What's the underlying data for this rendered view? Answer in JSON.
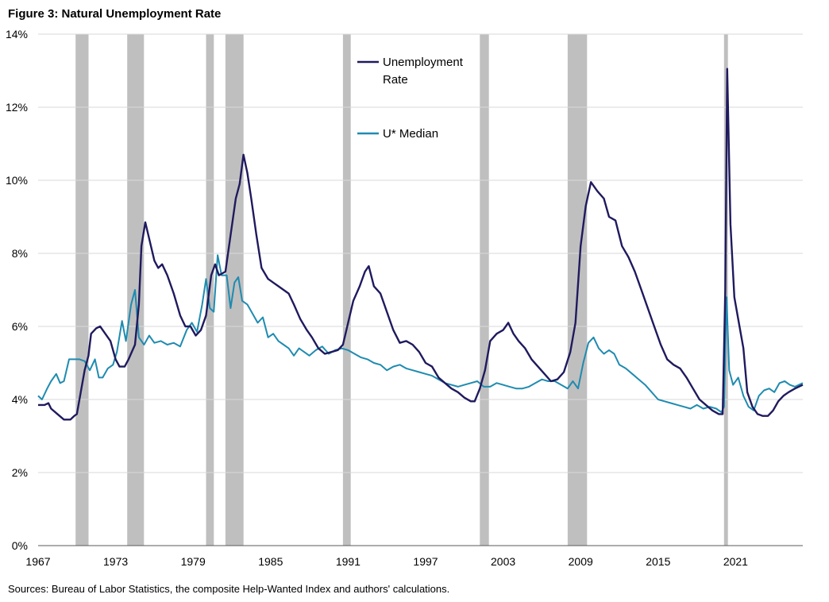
{
  "figure": {
    "title": "Figure 3: Natural Unemployment Rate",
    "source": "Sources: Bureau of Labor Statistics, the composite Help-Wanted Index and authors' calculations."
  },
  "chart_data": {
    "type": "line",
    "title": "Figure 3: Natural Unemployment Rate",
    "xlabel": "",
    "ylabel": "",
    "xlim": [
      1967,
      2026.2
    ],
    "ylim": [
      0,
      14
    ],
    "y_ticks": [
      0,
      2,
      4,
      6,
      8,
      10,
      12,
      14
    ],
    "y_tick_labels": [
      "0%",
      "2%",
      "4%",
      "6%",
      "8%",
      "10%",
      "12%",
      "14%"
    ],
    "x_ticks": [
      1967,
      1973,
      1979,
      1985,
      1991,
      1997,
      2003,
      2009,
      2015,
      2021
    ],
    "x_tick_labels": [
      "1967",
      "1973",
      "1979",
      "1985",
      "1991",
      "1997",
      "2003",
      "2009",
      "2015",
      "2021"
    ],
    "grid": "horizontal",
    "legend_position": "inside-top",
    "recessions": [
      [
        1969.9,
        1970.9
      ],
      [
        1973.9,
        1975.2
      ],
      [
        1980.0,
        1980.6
      ],
      [
        1981.5,
        1982.9
      ],
      [
        1990.6,
        1991.2
      ],
      [
        2001.2,
        2001.9
      ],
      [
        2008.0,
        2009.5
      ],
      [
        2020.1,
        2020.4
      ]
    ],
    "series": [
      {
        "name": "Unemployment Rate",
        "color": "#1f1a5e",
        "points": [
          [
            1967.0,
            3.85
          ],
          [
            1967.5,
            3.85
          ],
          [
            1967.8,
            3.9
          ],
          [
            1968.0,
            3.75
          ],
          [
            1968.5,
            3.6
          ],
          [
            1969.0,
            3.45
          ],
          [
            1969.5,
            3.45
          ],
          [
            1969.8,
            3.55
          ],
          [
            1970.0,
            3.6
          ],
          [
            1970.3,
            4.2
          ],
          [
            1970.6,
            4.8
          ],
          [
            1970.9,
            5.2
          ],
          [
            1971.1,
            5.8
          ],
          [
            1971.5,
            5.95
          ],
          [
            1971.8,
            6.0
          ],
          [
            1972.2,
            5.8
          ],
          [
            1972.6,
            5.6
          ],
          [
            1973.0,
            5.1
          ],
          [
            1973.3,
            4.9
          ],
          [
            1973.7,
            4.9
          ],
          [
            1974.0,
            5.1
          ],
          [
            1974.5,
            5.5
          ],
          [
            1974.8,
            6.6
          ],
          [
            1975.0,
            8.2
          ],
          [
            1975.3,
            8.85
          ],
          [
            1975.6,
            8.4
          ],
          [
            1976.0,
            7.8
          ],
          [
            1976.3,
            7.6
          ],
          [
            1976.6,
            7.7
          ],
          [
            1977.0,
            7.4
          ],
          [
            1977.5,
            6.9
          ],
          [
            1978.0,
            6.3
          ],
          [
            1978.4,
            6.0
          ],
          [
            1978.8,
            6.0
          ],
          [
            1979.2,
            5.75
          ],
          [
            1979.6,
            5.9
          ],
          [
            1980.0,
            6.3
          ],
          [
            1980.4,
            7.4
          ],
          [
            1980.7,
            7.7
          ],
          [
            1981.0,
            7.4
          ],
          [
            1981.5,
            7.5
          ],
          [
            1981.9,
            8.5
          ],
          [
            1982.3,
            9.5
          ],
          [
            1982.6,
            9.9
          ],
          [
            1982.9,
            10.7
          ],
          [
            1983.2,
            10.2
          ],
          [
            1983.5,
            9.5
          ],
          [
            1983.9,
            8.5
          ],
          [
            1984.3,
            7.6
          ],
          [
            1984.8,
            7.3
          ],
          [
            1985.2,
            7.2
          ],
          [
            1985.6,
            7.1
          ],
          [
            1986.0,
            7.0
          ],
          [
            1986.4,
            6.9
          ],
          [
            1986.8,
            6.6
          ],
          [
            1987.3,
            6.2
          ],
          [
            1987.8,
            5.9
          ],
          [
            1988.2,
            5.7
          ],
          [
            1988.7,
            5.4
          ],
          [
            1989.2,
            5.25
          ],
          [
            1989.7,
            5.3
          ],
          [
            1990.2,
            5.35
          ],
          [
            1990.6,
            5.5
          ],
          [
            1991.0,
            6.1
          ],
          [
            1991.4,
            6.7
          ],
          [
            1991.9,
            7.1
          ],
          [
            1992.3,
            7.5
          ],
          [
            1992.6,
            7.65
          ],
          [
            1993.0,
            7.1
          ],
          [
            1993.5,
            6.9
          ],
          [
            1994.0,
            6.4
          ],
          [
            1994.5,
            5.9
          ],
          [
            1995.0,
            5.55
          ],
          [
            1995.5,
            5.6
          ],
          [
            1996.0,
            5.5
          ],
          [
            1996.5,
            5.3
          ],
          [
            1997.0,
            5.0
          ],
          [
            1997.5,
            4.9
          ],
          [
            1998.0,
            4.6
          ],
          [
            1998.5,
            4.45
          ],
          [
            1999.0,
            4.3
          ],
          [
            1999.5,
            4.2
          ],
          [
            2000.0,
            4.05
          ],
          [
            2000.5,
            3.95
          ],
          [
            2000.8,
            3.95
          ],
          [
            2001.2,
            4.3
          ],
          [
            2001.6,
            4.8
          ],
          [
            2002.0,
            5.6
          ],
          [
            2002.5,
            5.8
          ],
          [
            2003.0,
            5.9
          ],
          [
            2003.4,
            6.1
          ],
          [
            2003.8,
            5.8
          ],
          [
            2004.2,
            5.6
          ],
          [
            2004.7,
            5.4
          ],
          [
            2005.2,
            5.1
          ],
          [
            2005.7,
            4.9
          ],
          [
            2006.2,
            4.7
          ],
          [
            2006.7,
            4.5
          ],
          [
            2007.2,
            4.55
          ],
          [
            2007.7,
            4.75
          ],
          [
            2008.2,
            5.3
          ],
          [
            2008.6,
            6.1
          ],
          [
            2009.0,
            8.2
          ],
          [
            2009.4,
            9.3
          ],
          [
            2009.8,
            9.95
          ],
          [
            2010.3,
            9.7
          ],
          [
            2010.8,
            9.5
          ],
          [
            2011.2,
            9.0
          ],
          [
            2011.7,
            8.9
          ],
          [
            2012.2,
            8.2
          ],
          [
            2012.7,
            7.9
          ],
          [
            2013.2,
            7.5
          ],
          [
            2013.7,
            7.0
          ],
          [
            2014.2,
            6.5
          ],
          [
            2014.7,
            6.0
          ],
          [
            2015.2,
            5.5
          ],
          [
            2015.7,
            5.1
          ],
          [
            2016.2,
            4.95
          ],
          [
            2016.7,
            4.85
          ],
          [
            2017.2,
            4.6
          ],
          [
            2017.7,
            4.3
          ],
          [
            2018.2,
            4.0
          ],
          [
            2018.7,
            3.85
          ],
          [
            2019.2,
            3.7
          ],
          [
            2019.7,
            3.6
          ],
          [
            2020.0,
            3.6
          ],
          [
            2020.2,
            7.0
          ],
          [
            2020.35,
            13.05
          ],
          [
            2020.6,
            8.8
          ],
          [
            2020.9,
            6.8
          ],
          [
            2021.3,
            6.0
          ],
          [
            2021.6,
            5.4
          ],
          [
            2021.9,
            4.2
          ],
          [
            2022.3,
            3.8
          ],
          [
            2022.7,
            3.6
          ],
          [
            2023.1,
            3.55
          ],
          [
            2023.5,
            3.55
          ],
          [
            2023.9,
            3.7
          ],
          [
            2024.3,
            3.95
          ],
          [
            2024.7,
            4.1
          ],
          [
            2025.1,
            4.2
          ],
          [
            2025.6,
            4.3
          ],
          [
            2026.2,
            4.4
          ]
        ]
      },
      {
        "name": "U* Median",
        "color": "#1f8bb0",
        "points": [
          [
            1967.0,
            4.1
          ],
          [
            1967.3,
            4.0
          ],
          [
            1967.7,
            4.3
          ],
          [
            1968.0,
            4.5
          ],
          [
            1968.4,
            4.7
          ],
          [
            1968.7,
            4.45
          ],
          [
            1969.0,
            4.5
          ],
          [
            1969.4,
            5.1
          ],
          [
            1969.8,
            5.1
          ],
          [
            1970.2,
            5.1
          ],
          [
            1970.6,
            5.05
          ],
          [
            1971.0,
            4.8
          ],
          [
            1971.4,
            5.1
          ],
          [
            1971.7,
            4.6
          ],
          [
            1972.0,
            4.6
          ],
          [
            1972.4,
            4.85
          ],
          [
            1972.8,
            4.95
          ],
          [
            1973.1,
            5.3
          ],
          [
            1973.5,
            6.15
          ],
          [
            1973.8,
            5.6
          ],
          [
            1974.2,
            6.6
          ],
          [
            1974.5,
            7.0
          ],
          [
            1974.8,
            5.7
          ],
          [
            1975.2,
            5.5
          ],
          [
            1975.6,
            5.75
          ],
          [
            1976.0,
            5.55
          ],
          [
            1976.5,
            5.6
          ],
          [
            1977.0,
            5.5
          ],
          [
            1977.5,
            5.55
          ],
          [
            1978.0,
            5.45
          ],
          [
            1978.5,
            5.9
          ],
          [
            1978.9,
            6.1
          ],
          [
            1979.3,
            5.85
          ],
          [
            1979.7,
            6.6
          ],
          [
            1980.0,
            7.3
          ],
          [
            1980.3,
            6.5
          ],
          [
            1980.6,
            6.4
          ],
          [
            1980.9,
            7.95
          ],
          [
            1981.2,
            7.4
          ],
          [
            1981.6,
            7.4
          ],
          [
            1981.9,
            6.5
          ],
          [
            1982.2,
            7.2
          ],
          [
            1982.5,
            7.35
          ],
          [
            1982.8,
            6.7
          ],
          [
            1983.2,
            6.6
          ],
          [
            1983.6,
            6.35
          ],
          [
            1984.0,
            6.1
          ],
          [
            1984.4,
            6.25
          ],
          [
            1984.8,
            5.7
          ],
          [
            1985.2,
            5.8
          ],
          [
            1985.6,
            5.6
          ],
          [
            1986.0,
            5.5
          ],
          [
            1986.4,
            5.4
          ],
          [
            1986.8,
            5.2
          ],
          [
            1987.2,
            5.4
          ],
          [
            1987.6,
            5.3
          ],
          [
            1988.0,
            5.2
          ],
          [
            1988.5,
            5.35
          ],
          [
            1989.0,
            5.45
          ],
          [
            1989.5,
            5.25
          ],
          [
            1990.0,
            5.35
          ],
          [
            1990.5,
            5.4
          ],
          [
            1991.0,
            5.35
          ],
          [
            1991.5,
            5.25
          ],
          [
            1992.0,
            5.15
          ],
          [
            1992.5,
            5.1
          ],
          [
            1993.0,
            5.0
          ],
          [
            1993.5,
            4.95
          ],
          [
            1994.0,
            4.8
          ],
          [
            1994.5,
            4.9
          ],
          [
            1995.0,
            4.95
          ],
          [
            1995.5,
            4.85
          ],
          [
            1996.0,
            4.8
          ],
          [
            1996.5,
            4.75
          ],
          [
            1997.0,
            4.7
          ],
          [
            1997.5,
            4.65
          ],
          [
            1998.0,
            4.55
          ],
          [
            1998.5,
            4.45
          ],
          [
            1999.0,
            4.4
          ],
          [
            1999.5,
            4.35
          ],
          [
            2000.0,
            4.4
          ],
          [
            2000.5,
            4.45
          ],
          [
            2001.0,
            4.5
          ],
          [
            2001.5,
            4.35
          ],
          [
            2002.0,
            4.35
          ],
          [
            2002.5,
            4.45
          ],
          [
            2003.0,
            4.4
          ],
          [
            2003.5,
            4.35
          ],
          [
            2004.0,
            4.3
          ],
          [
            2004.5,
            4.3
          ],
          [
            2005.0,
            4.35
          ],
          [
            2005.5,
            4.45
          ],
          [
            2006.0,
            4.55
          ],
          [
            2006.5,
            4.5
          ],
          [
            2007.0,
            4.5
          ],
          [
            2007.5,
            4.4
          ],
          [
            2008.0,
            4.3
          ],
          [
            2008.4,
            4.5
          ],
          [
            2008.8,
            4.3
          ],
          [
            2009.2,
            5.0
          ],
          [
            2009.6,
            5.55
          ],
          [
            2010.0,
            5.7
          ],
          [
            2010.4,
            5.4
          ],
          [
            2010.8,
            5.25
          ],
          [
            2011.2,
            5.35
          ],
          [
            2011.6,
            5.25
          ],
          [
            2012.0,
            4.95
          ],
          [
            2012.5,
            4.85
          ],
          [
            2013.0,
            4.7
          ],
          [
            2013.5,
            4.55
          ],
          [
            2014.0,
            4.4
          ],
          [
            2014.5,
            4.2
          ],
          [
            2015.0,
            4.0
          ],
          [
            2015.5,
            3.95
          ],
          [
            2016.0,
            3.9
          ],
          [
            2016.5,
            3.85
          ],
          [
            2017.0,
            3.8
          ],
          [
            2017.5,
            3.75
          ],
          [
            2018.0,
            3.85
          ],
          [
            2018.5,
            3.75
          ],
          [
            2019.0,
            3.8
          ],
          [
            2019.5,
            3.75
          ],
          [
            2019.9,
            3.65
          ],
          [
            2020.1,
            3.8
          ],
          [
            2020.3,
            6.8
          ],
          [
            2020.5,
            4.8
          ],
          [
            2020.8,
            4.4
          ],
          [
            2021.2,
            4.6
          ],
          [
            2021.6,
            4.1
          ],
          [
            2022.0,
            3.8
          ],
          [
            2022.4,
            3.7
          ],
          [
            2022.8,
            4.1
          ],
          [
            2023.2,
            4.25
          ],
          [
            2023.6,
            4.3
          ],
          [
            2024.0,
            4.2
          ],
          [
            2024.4,
            4.45
          ],
          [
            2024.8,
            4.5
          ],
          [
            2025.2,
            4.4
          ],
          [
            2025.6,
            4.35
          ],
          [
            2026.2,
            4.45
          ]
        ]
      }
    ]
  }
}
